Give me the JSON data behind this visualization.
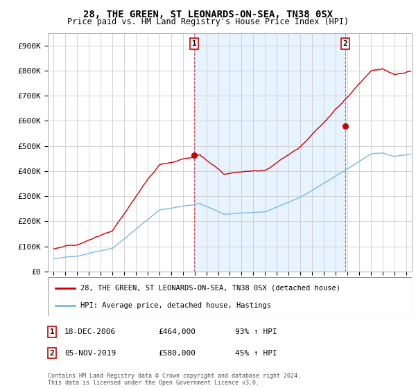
{
  "title": "28, THE GREEN, ST LEONARDS-ON-SEA, TN38 0SX",
  "subtitle": "Price paid vs. HM Land Registry's House Price Index (HPI)",
  "ylim": [
    0,
    950000
  ],
  "yticks": [
    0,
    100000,
    200000,
    300000,
    400000,
    500000,
    600000,
    700000,
    800000,
    900000
  ],
  "ytick_labels": [
    "£0",
    "£100K",
    "£200K",
    "£300K",
    "£400K",
    "£500K",
    "£600K",
    "£700K",
    "£800K",
    "£900K"
  ],
  "sale1": {
    "date_num": 2006.96,
    "price": 464000,
    "label": "1",
    "date_str": "18-DEC-2006",
    "price_str": "£464,000",
    "hpi_str": "93% ↑ HPI"
  },
  "sale2": {
    "date_num": 2019.84,
    "price": 580000,
    "label": "2",
    "date_str": "05-NOV-2019",
    "price_str": "£580,000",
    "hpi_str": "45% ↑ HPI"
  },
  "hpi_color": "#7ab8e8",
  "price_color": "#cc0000",
  "shade_color": "#ddeeff",
  "bg_color": "#ffffff",
  "grid_color": "#cccccc",
  "legend_label_red": "28, THE GREEN, ST LEONARDS-ON-SEA, TN38 0SX (detached house)",
  "legend_label_blue": "HPI: Average price, detached house, Hastings",
  "footer": "Contains HM Land Registry data © Crown copyright and database right 2024.\nThis data is licensed under the Open Government Licence v3.0.",
  "xlim_start": 1994.5,
  "xlim_end": 2025.5
}
